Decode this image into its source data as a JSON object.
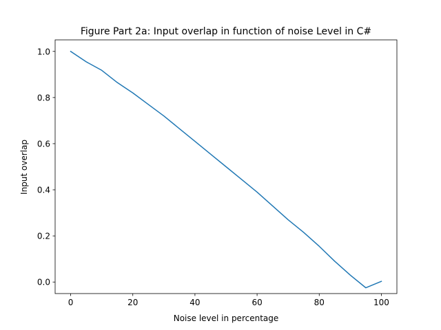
{
  "chart_data": {
    "type": "line",
    "title": "Figure Part 2a: Input overlap in function of noise Level in C#",
    "xlabel": "Noise level in percentage",
    "ylabel": "Input overlap",
    "xlim": [
      -5,
      105
    ],
    "ylim": [
      -0.05,
      1.05
    ],
    "xticks": [
      0,
      20,
      40,
      60,
      80,
      100
    ],
    "yticks": [
      0.0,
      0.2,
      0.4,
      0.6,
      0.8,
      1.0
    ],
    "xtick_labels": [
      "0",
      "20",
      "40",
      "60",
      "80",
      "100"
    ],
    "ytick_labels": [
      "0.0",
      "0.2",
      "0.4",
      "0.6",
      "0.8",
      "1.0"
    ],
    "grid": false,
    "series": [
      {
        "color": "#1f77b4",
        "x": [
          0,
          5,
          10,
          15,
          20,
          25,
          30,
          35,
          40,
          45,
          50,
          55,
          60,
          65,
          70,
          75,
          80,
          85,
          90,
          95,
          100
        ],
        "y": [
          1.0,
          0.955,
          0.918,
          0.865,
          0.82,
          0.77,
          0.72,
          0.665,
          0.61,
          0.555,
          0.5,
          0.445,
          0.39,
          0.33,
          0.27,
          0.215,
          0.155,
          0.09,
          0.03,
          -0.025,
          0.003
        ]
      }
    ]
  }
}
